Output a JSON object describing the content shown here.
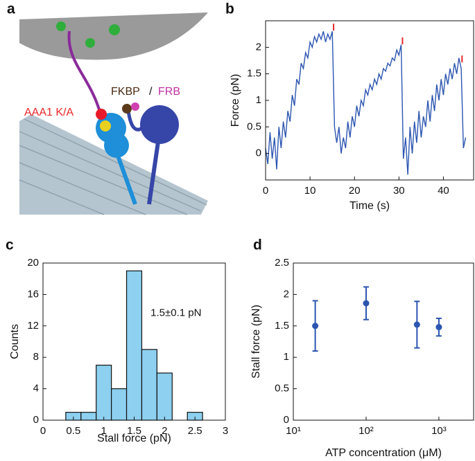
{
  "illustration": {
    "label": "a",
    "labels": [
      "AAA1 K/A",
      "FKBP",
      "/",
      "FRB"
    ]
  },
  "chart_data": [
    {
      "type": "line",
      "label": "b",
      "xlabel": "Time (s)",
      "ylabel": "Force (pN)",
      "x": [
        0,
        0.5,
        1,
        1.5,
        2,
        2.5,
        3,
        3.5,
        4,
        4.5,
        5,
        5.5,
        6,
        6.5,
        7,
        7.5,
        8,
        8.5,
        9,
        9.5,
        10,
        10.5,
        11,
        11.5,
        12,
        12.5,
        13,
        13.5,
        14,
        14.5,
        15,
        15.5,
        16,
        16.5,
        17,
        17.5,
        18,
        18.5,
        19,
        19.5,
        20,
        20.5,
        21,
        21.5,
        22,
        22.5,
        23,
        23.5,
        24,
        24.5,
        25,
        25.5,
        26,
        26.5,
        27,
        27.5,
        28,
        28.5,
        29,
        29.5,
        30,
        30.5,
        31,
        31.5,
        32,
        32.5,
        33,
        33.5,
        34,
        34.5,
        35,
        35.5,
        36,
        36.5,
        37,
        37.5,
        38,
        38.5,
        39,
        39.5,
        40,
        40.5,
        41,
        41.5,
        42,
        42.5,
        43,
        43.5,
        44,
        44.5,
        45
      ],
      "series": [
        {
          "color": "#2b55b0",
          "values": [
            0.1,
            -0.2,
            0.4,
            -0.1,
            0.3,
            -0.3,
            0.5,
            0.1,
            0.6,
            0.3,
            0.8,
            0.6,
            1.1,
            0.9,
            1.4,
            1.3,
            1.7,
            1.6,
            1.9,
            1.8,
            2.1,
            2.0,
            2.2,
            2.1,
            2.25,
            2.15,
            2.3,
            2.1,
            2.25,
            2.15,
            2.3,
            0.5,
            0.2,
            0.5,
            0.0,
            0.3,
            0.1,
            0.6,
            0.3,
            0.7,
            0.5,
            0.9,
            0.7,
            1.0,
            0.9,
            1.2,
            1.1,
            1.3,
            1.2,
            1.4,
            1.3,
            1.5,
            1.4,
            1.6,
            1.55,
            1.7,
            1.65,
            1.8,
            1.75,
            1.95,
            1.85,
            2.05,
            -0.1,
            0.3,
            -0.4,
            0.5,
            0.0,
            0.6,
            0.2,
            0.8,
            0.3,
            0.7,
            0.5,
            1.0,
            0.6,
            1.1,
            0.8,
            1.3,
            1.0,
            1.4,
            1.1,
            1.5,
            1.3,
            1.6,
            1.4,
            1.7,
            1.5,
            1.8,
            1.6,
            0.1,
            0.3
          ]
        }
      ],
      "markers": {
        "color": "#e8262a",
        "x": [
          15.3,
          30.8,
          44.2
        ],
        "values": [
          2.38,
          2.12,
          1.78
        ]
      },
      "xlim": [
        0,
        46.8
      ],
      "xticks": [
        0,
        10,
        20,
        30,
        40
      ],
      "ylim": [
        -0.5,
        2.5
      ],
      "yticks": [
        0,
        0.5,
        1,
        1.5,
        2
      ]
    },
    {
      "type": "histogram",
      "label": "c",
      "xlabel": "Stall force (pN)",
      "ylabel": "Counts",
      "annotation": "1.5±0.1 pN",
      "color": "#8dd0f0",
      "bins": [
        0.375,
        0.625,
        0.875,
        1.125,
        1.375,
        1.625,
        1.875,
        2.125,
        2.375,
        2.625
      ],
      "values": [
        1,
        1,
        7,
        4,
        19,
        9,
        6,
        0,
        1
      ],
      "xlim": [
        0,
        3
      ],
      "xticks": [
        0,
        0.5,
        1,
        1.5,
        2,
        2.5,
        3
      ],
      "ylim": [
        0,
        20
      ],
      "yticks": [
        0,
        4,
        8,
        12,
        16,
        20
      ]
    },
    {
      "type": "scatter",
      "label": "d",
      "xlabel": "ATP concentration (μM)",
      "ylabel": "Stall force (pN)",
      "color": "#2b55b0",
      "xscale": "log",
      "x": [
        20,
        100,
        500,
        1000
      ],
      "values": [
        1.5,
        1.86,
        1.52,
        1.48
      ],
      "errors": [
        0.4,
        0.26,
        0.37,
        0.14
      ],
      "xlim": [
        10,
        3000
      ],
      "xticks": [
        {
          "value": 10,
          "label": "10¹"
        },
        {
          "value": 100,
          "label": "10²"
        },
        {
          "value": 1000,
          "label": "10³"
        }
      ],
      "ylim": [
        0,
        2.5
      ],
      "yticks": [
        0,
        0.5,
        1,
        1.5,
        2,
        2.5
      ]
    }
  ]
}
